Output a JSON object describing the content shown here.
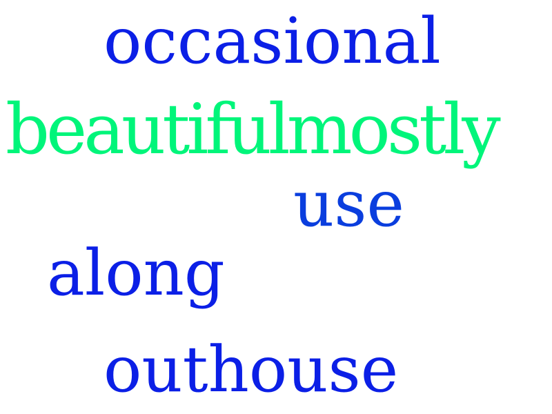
{
  "words": [
    {
      "text": "occasional",
      "color": "#0b1fe6"
    },
    {
      "text": "beautifulmostly",
      "color": "#00f57a"
    },
    {
      "text": "use",
      "color": "#0a3ede"
    },
    {
      "text": "along",
      "color": "#0b1fe6"
    },
    {
      "text": "outhouse",
      "color": "#0b1fe6"
    }
  ]
}
